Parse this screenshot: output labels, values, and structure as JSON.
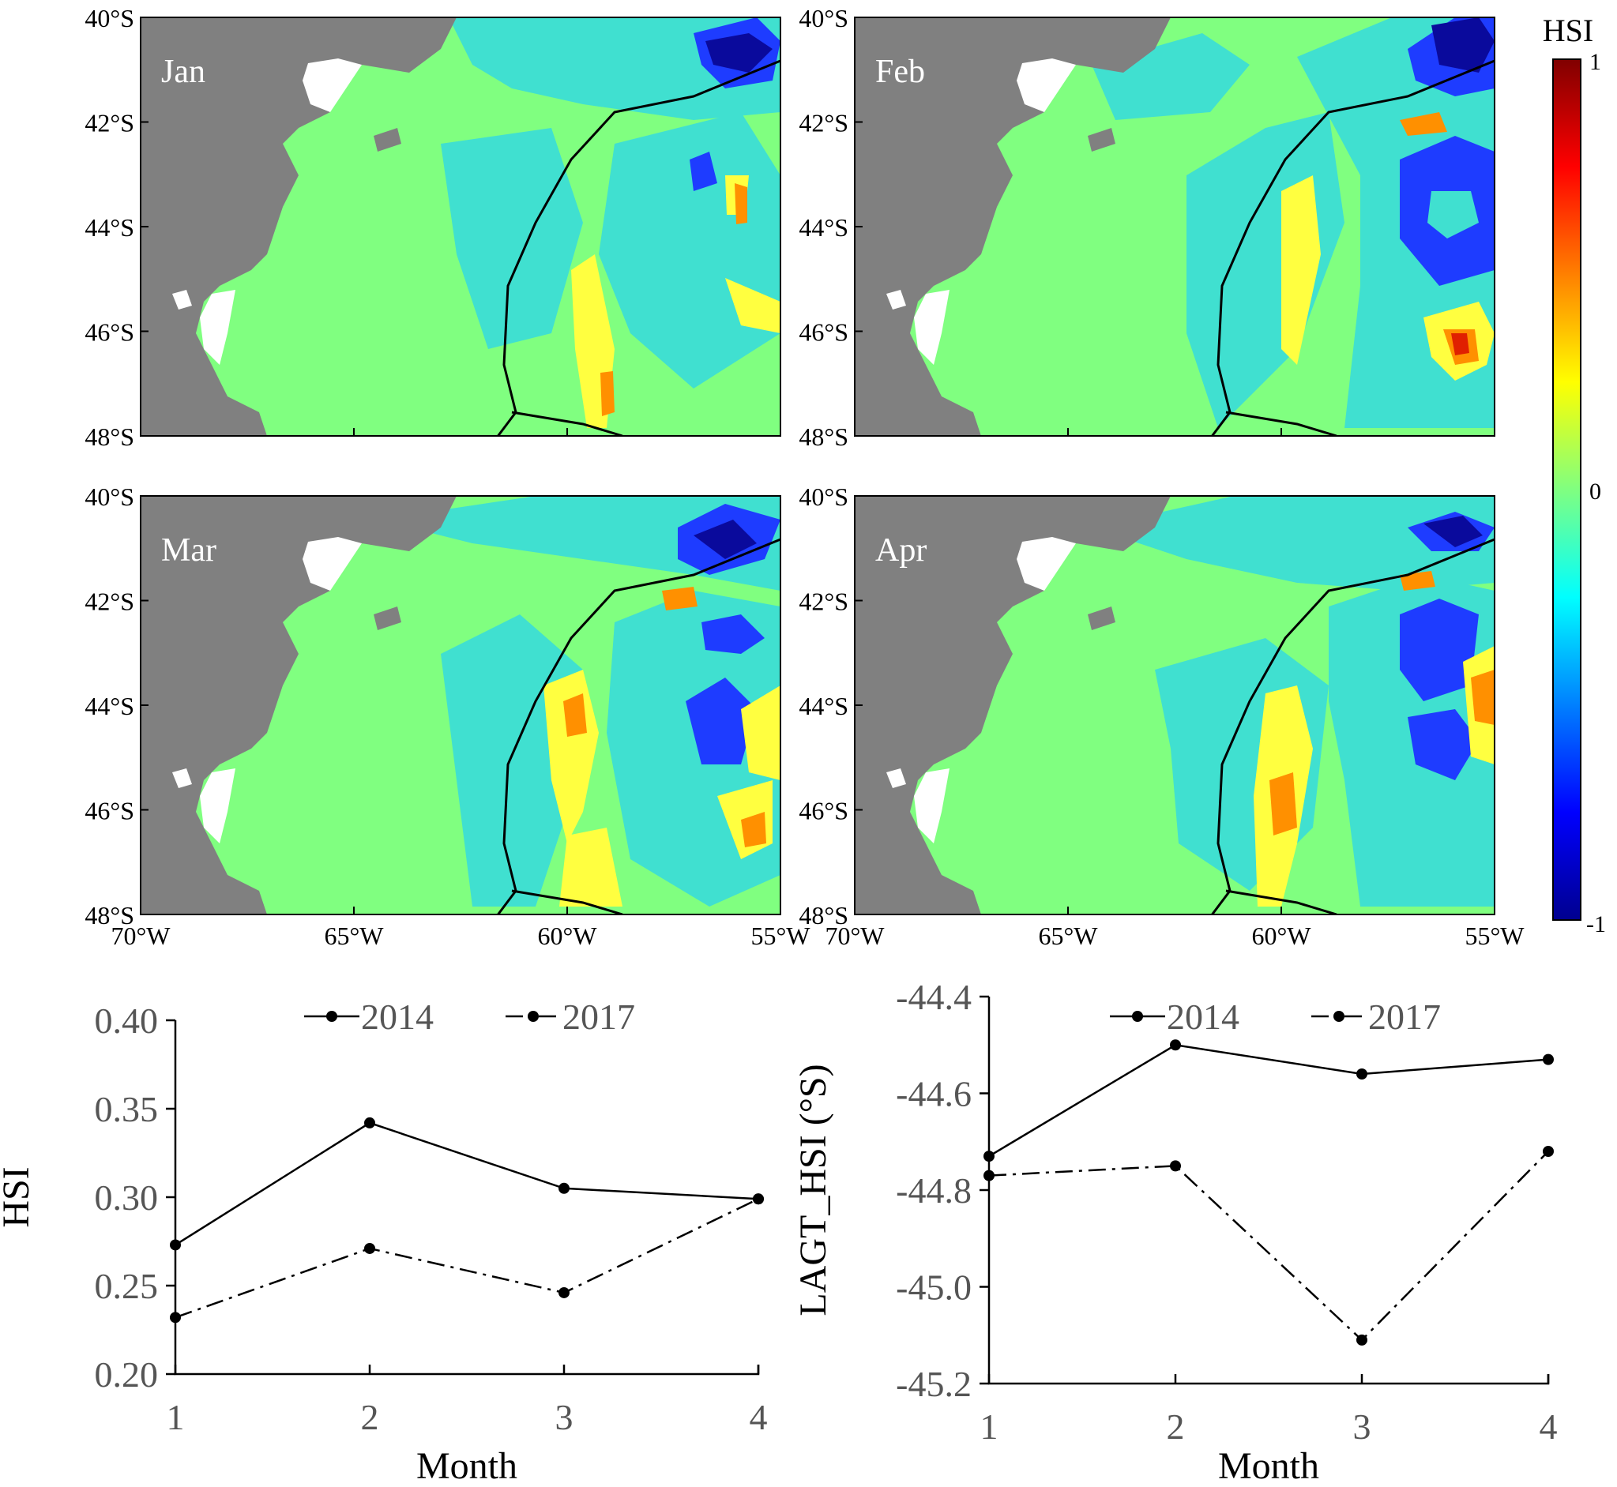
{
  "map_panels": {
    "months": [
      "Jan",
      "Feb",
      "Mar",
      "Apr"
    ],
    "lat_ticks": [
      "40°S",
      "42°S",
      "44°S",
      "46°S",
      "48°S"
    ],
    "lon_ticks": [
      "70°W",
      "65°W",
      "60°W",
      "55°W"
    ],
    "colorbar": {
      "title": "HSI",
      "max_label": "1",
      "mid_label": "0",
      "min_label": "-1",
      "colors": [
        "#00008f",
        "#0000ff",
        "#0080ff",
        "#00ffff",
        "#80ff80",
        "#ffff00",
        "#ff8000",
        "#ff0000",
        "#800000"
      ]
    },
    "colors": {
      "land": "#808080",
      "ocean_base": "#80ff80",
      "low": "#40e0d0",
      "very_low": "#1e3cff",
      "deep": "#0a0a9c",
      "mid_high": "#ffff40",
      "high": "#ff9000",
      "very_high": "#e02000"
    }
  },
  "chart_data": [
    {
      "type": "line",
      "title": "",
      "xlabel": "Month",
      "ylabel": "HSI",
      "x": [
        1,
        2,
        3,
        4
      ],
      "xticks": [
        "1",
        "2",
        "3",
        "4"
      ],
      "ylim": [
        0.2,
        0.4
      ],
      "yticks": [
        "0.20",
        "0.25",
        "0.30",
        "0.35",
        "0.40"
      ],
      "series": [
        {
          "name": "2014",
          "style": "solid",
          "values": [
            0.273,
            0.342,
            0.305,
            0.299
          ]
        },
        {
          "name": "2017",
          "style": "dash-dot",
          "values": [
            0.232,
            0.271,
            0.246,
            0.299
          ]
        }
      ],
      "legend": "top"
    },
    {
      "type": "line",
      "title": "",
      "xlabel": "Month",
      "ylabel": "LAGT_HSI (°S)",
      "x": [
        1,
        2,
        3,
        4
      ],
      "xticks": [
        "1",
        "2",
        "3",
        "4"
      ],
      "ylim": [
        -45.2,
        -44.4
      ],
      "yticks": [
        "-44.4",
        "-44.6",
        "-44.8",
        "-45.0",
        "-45.2"
      ],
      "series": [
        {
          "name": "2014",
          "style": "solid",
          "values": [
            -44.73,
            -44.5,
            -44.56,
            -44.53
          ]
        },
        {
          "name": "2017",
          "style": "dash-dot",
          "values": [
            -44.77,
            -44.75,
            -45.11,
            -44.72
          ]
        }
      ],
      "legend": "top"
    }
  ]
}
